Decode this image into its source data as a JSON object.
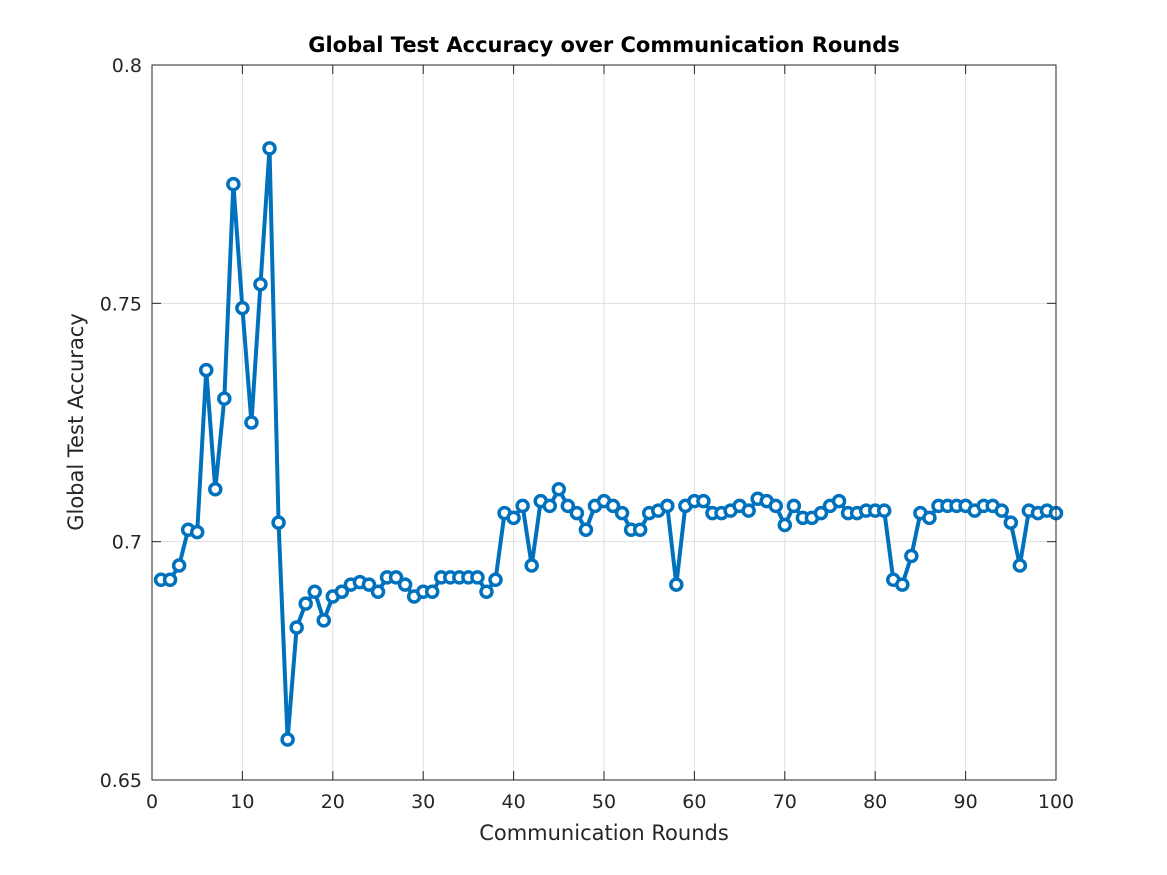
{
  "chart_data": {
    "type": "line",
    "title": "Global Test Accuracy over Communication Rounds",
    "xlabel": "Communication Rounds",
    "ylabel": "Global Test Accuracy",
    "xlim": [
      0,
      100
    ],
    "ylim": [
      0.65,
      0.8
    ],
    "xticks": [
      0,
      10,
      20,
      30,
      40,
      50,
      60,
      70,
      80,
      90,
      100
    ],
    "yticks": [
      0.65,
      0.7,
      0.75,
      0.8
    ],
    "xtick_labels": [
      "0",
      "10",
      "20",
      "30",
      "40",
      "50",
      "60",
      "70",
      "80",
      "90",
      "100"
    ],
    "ytick_labels": [
      "0.65",
      "0.7",
      "0.75",
      "0.8"
    ],
    "grid": true,
    "marker": "circle",
    "series_color": "#0072BD",
    "x": [
      1,
      2,
      3,
      4,
      5,
      6,
      7,
      8,
      9,
      10,
      11,
      12,
      13,
      14,
      15,
      16,
      17,
      18,
      19,
      20,
      21,
      22,
      23,
      24,
      25,
      26,
      27,
      28,
      29,
      30,
      31,
      32,
      33,
      34,
      35,
      36,
      37,
      38,
      39,
      40,
      41,
      42,
      43,
      44,
      45,
      46,
      47,
      48,
      49,
      50,
      51,
      52,
      53,
      54,
      55,
      56,
      57,
      58,
      59,
      60,
      61,
      62,
      63,
      64,
      65,
      66,
      67,
      68,
      69,
      70,
      71,
      72,
      73,
      74,
      75,
      76,
      77,
      78,
      79,
      80,
      81,
      82,
      83,
      84,
      85,
      86,
      87,
      88,
      89,
      90,
      91,
      92,
      93,
      94,
      95,
      96,
      97,
      98,
      99,
      100
    ],
    "series": [
      {
        "values": [
          0.692,
          0.692,
          0.695,
          0.7025,
          0.702,
          0.736,
          0.711,
          0.73,
          0.775,
          0.749,
          0.725,
          0.754,
          0.7825,
          0.704,
          0.6585,
          0.682,
          0.687,
          0.6895,
          0.6835,
          0.6885,
          0.6895,
          0.691,
          0.6915,
          0.691,
          0.6895,
          0.6925,
          0.6925,
          0.691,
          0.6885,
          0.6895,
          0.6895,
          0.6925,
          0.6925,
          0.6925,
          0.6925,
          0.6925,
          0.6895,
          0.692,
          0.706,
          0.705,
          0.7075,
          0.695,
          0.7085,
          0.7075,
          0.711,
          0.7075,
          0.706,
          0.7025,
          0.7075,
          0.7085,
          0.7075,
          0.706,
          0.7025,
          0.7025,
          0.706,
          0.7065,
          0.7075,
          0.691,
          0.7075,
          0.7085,
          0.7085,
          0.706,
          0.706,
          0.7065,
          0.7075,
          0.7065,
          0.709,
          0.7085,
          0.7075,
          0.7035,
          0.7075,
          0.705,
          0.705,
          0.706,
          0.7075,
          0.7085,
          0.706,
          0.706,
          0.7065,
          0.7065,
          0.7065,
          0.692,
          0.691,
          0.697,
          0.706,
          0.705,
          0.7075,
          0.7075,
          0.7075,
          0.7075,
          0.7065,
          0.7075,
          0.7075,
          0.7065,
          0.704,
          0.695,
          0.7065,
          0.706,
          0.7065,
          0.706
        ]
      }
    ]
  }
}
